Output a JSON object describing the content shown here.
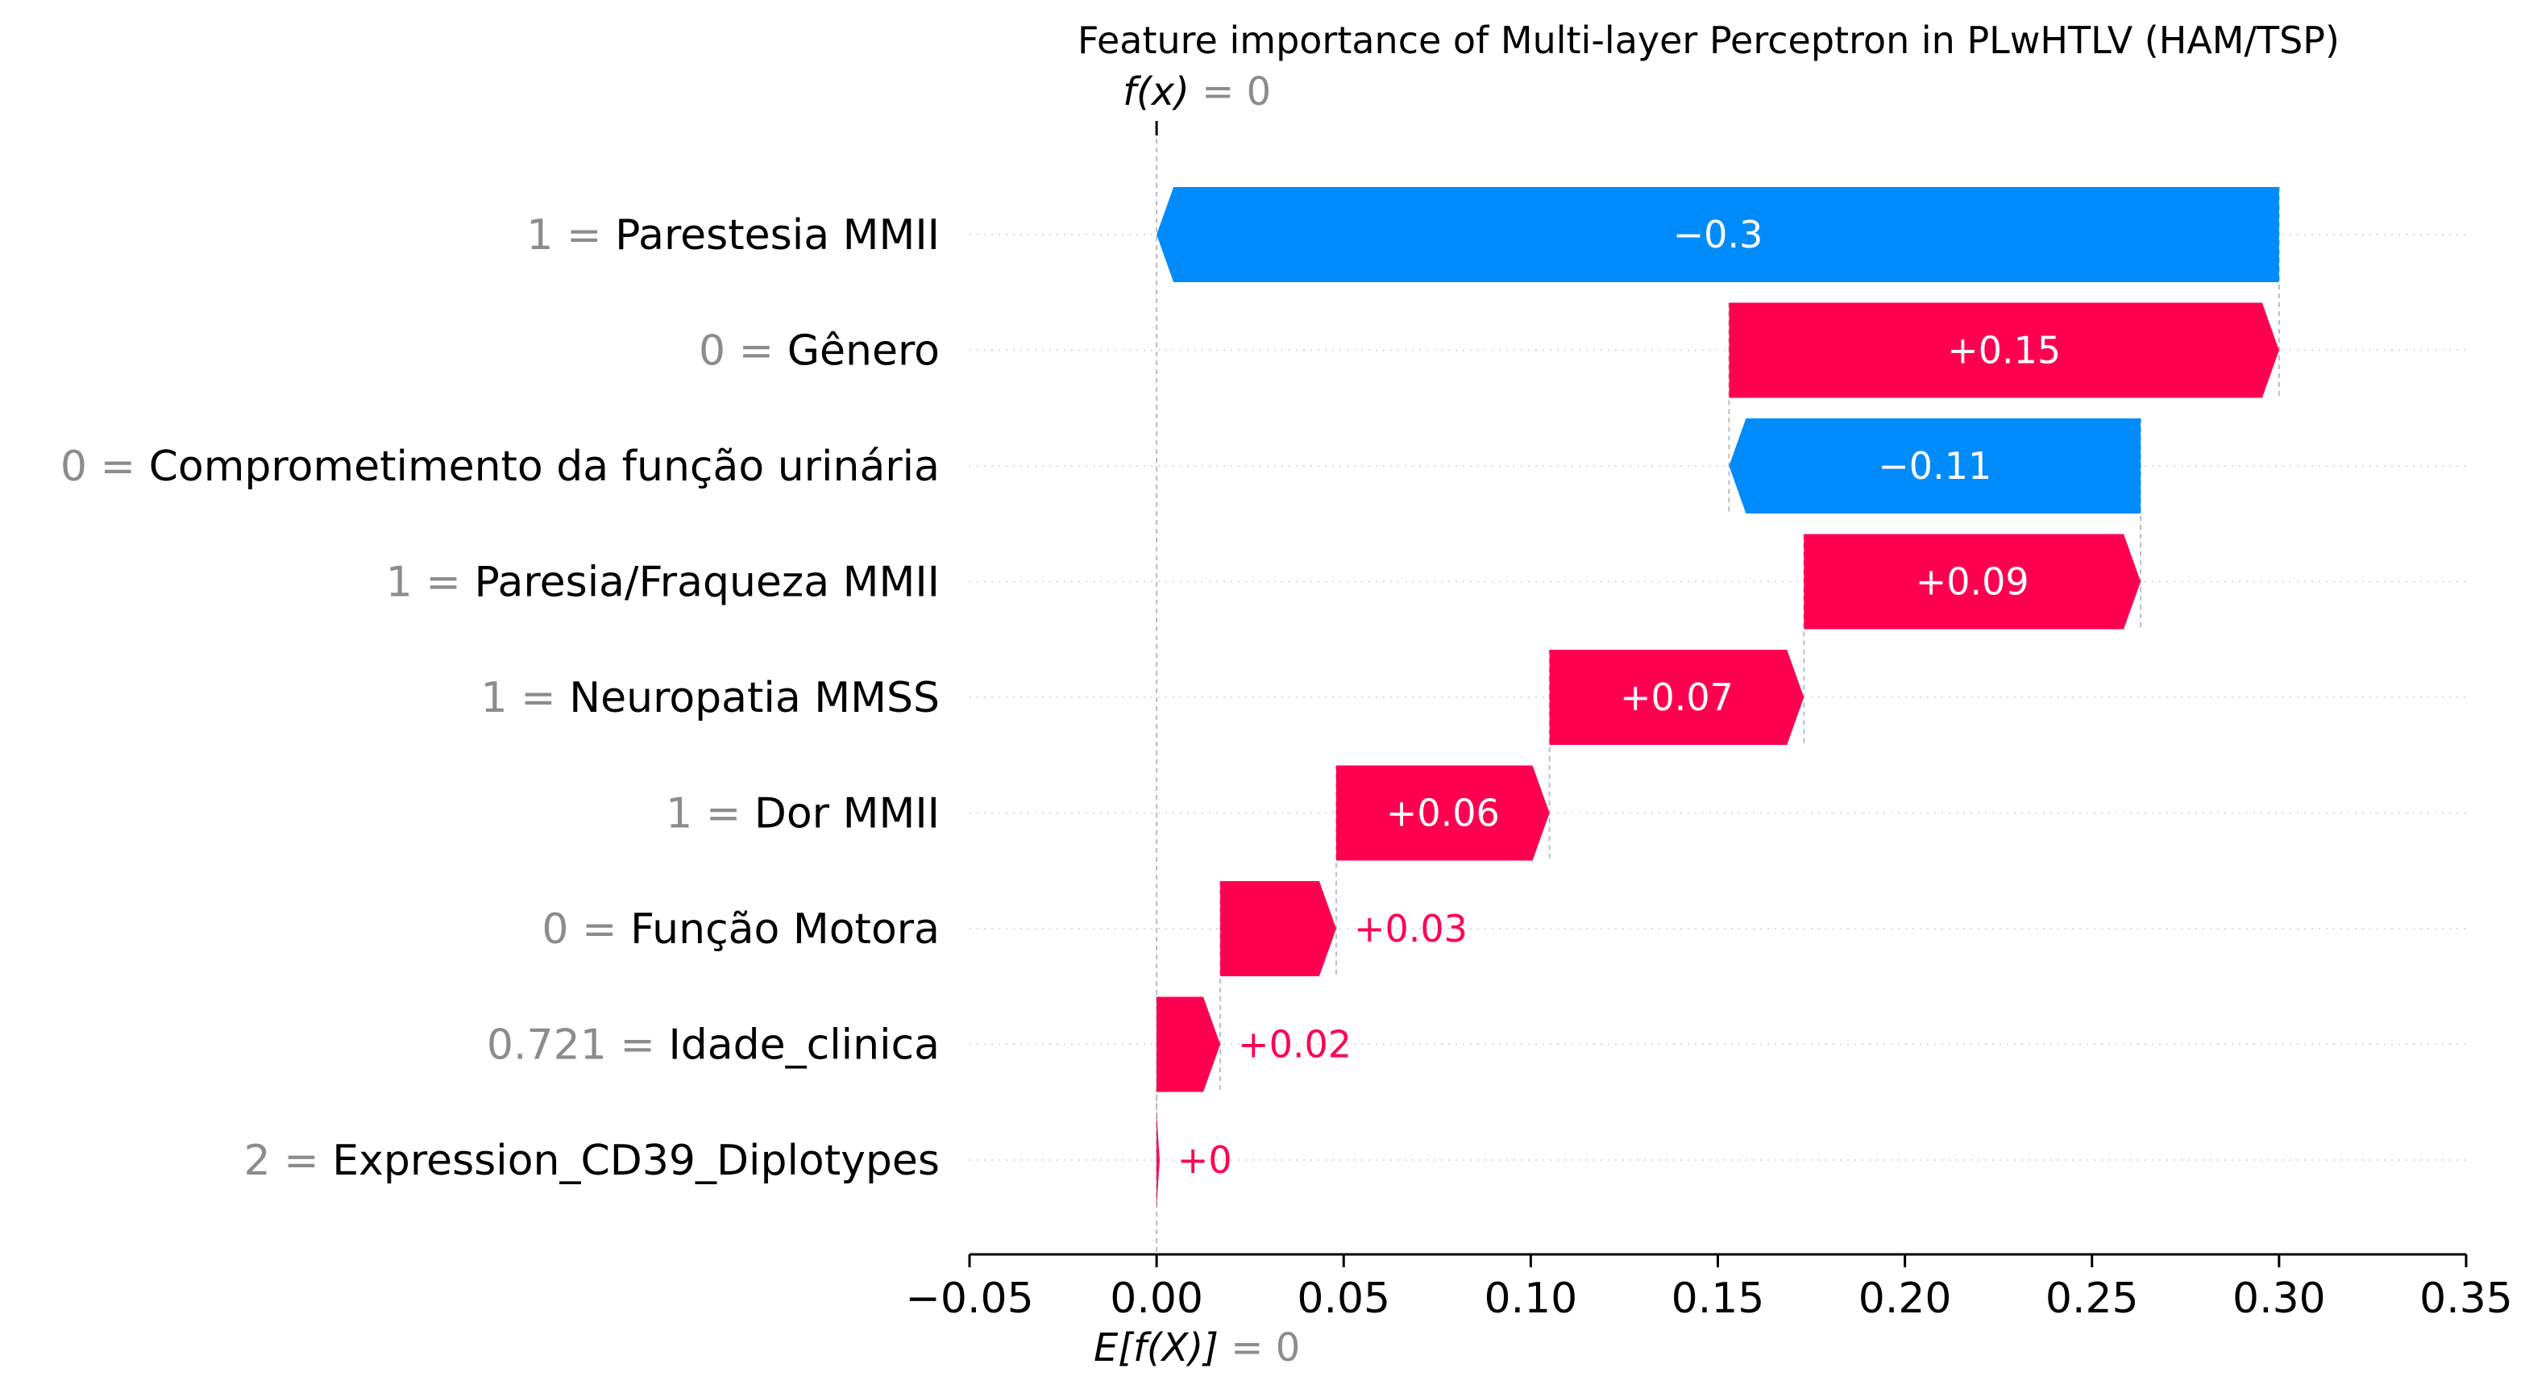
{
  "chart_data": {
    "type": "waterfall",
    "title": "Feature importance of Multi-layer Perceptron in PLwHTLV (HAM/TSP)",
    "fx": {
      "label": "f(x)",
      "value": "0"
    },
    "base": {
      "label": "E[f(X)]",
      "value": "0"
    },
    "xlim": [
      -0.05,
      0.35
    ],
    "xticks": [
      -0.05,
      0.0,
      0.05,
      0.1,
      0.15,
      0.2,
      0.25,
      0.3,
      0.35
    ],
    "xtick_labels": [
      "−0.05",
      "0.00",
      "0.05",
      "0.10",
      "0.15",
      "0.20",
      "0.25",
      "0.30",
      "0.35"
    ],
    "colors": {
      "positive": "#ff0051",
      "negative": "#008bfb"
    },
    "features": [
      {
        "value": "1",
        "name": "Parestesia MMII",
        "start": 0.3,
        "end": 0.0,
        "label": "−0.3"
      },
      {
        "value": "0",
        "name": "Gênero",
        "start": 0.153,
        "end": 0.3,
        "label": "+0.15"
      },
      {
        "value": "0",
        "name": "Comprometimento da função urinária",
        "start": 0.263,
        "end": 0.153,
        "label": "−0.11"
      },
      {
        "value": "1",
        "name": "Paresia/Fraqueza MMII",
        "start": 0.173,
        "end": 0.263,
        "label": "+0.09"
      },
      {
        "value": "1",
        "name": "Neuropatia MMSS",
        "start": 0.105,
        "end": 0.173,
        "label": "+0.07"
      },
      {
        "value": "1",
        "name": "Dor MMII",
        "start": 0.048,
        "end": 0.105,
        "label": "+0.06"
      },
      {
        "value": "0",
        "name": "Função Motora",
        "start": 0.017,
        "end": 0.048,
        "label": "+0.03"
      },
      {
        "value": "0.721",
        "name": "Idade_clinica",
        "start": 0.0,
        "end": 0.017,
        "label": "+0.02"
      },
      {
        "value": "2",
        "name": "Expression_CD39_Diplotypes",
        "start": 0.0,
        "end": 0.0008,
        "label": "+0"
      }
    ]
  }
}
